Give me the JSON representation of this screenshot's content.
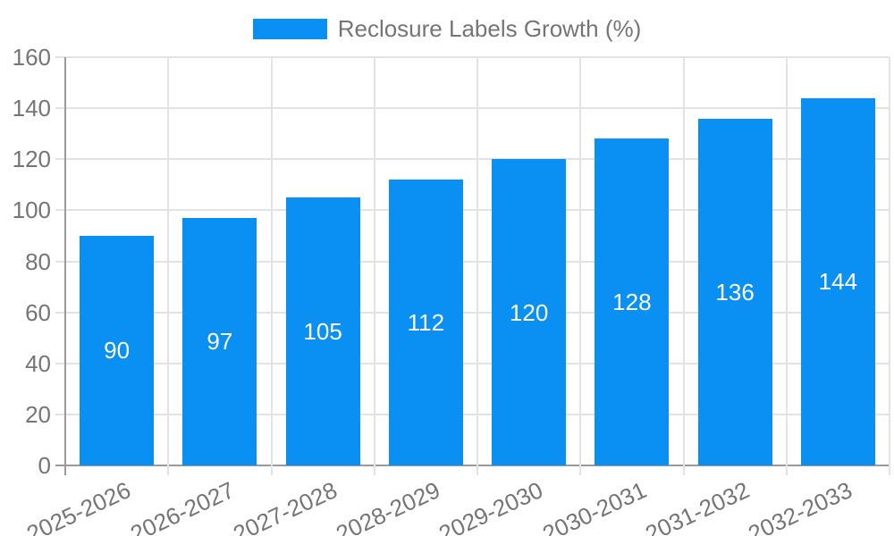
{
  "chart_data": {
    "type": "bar",
    "title": "",
    "legend": {
      "label": "Reclosure Labels Growth (%)",
      "position": "top-center"
    },
    "categories": [
      "2025-2026",
      "2026-2027",
      "2027-2028",
      "2028-2029",
      "2029-2030",
      "2030-2031",
      "2031-2032",
      "2032-2033"
    ],
    "values": [
      90,
      97,
      105,
      112,
      120,
      128,
      136,
      144
    ],
    "value_labels_shown_inside_bars": true,
    "ylim": [
      0,
      160
    ],
    "ytick_step": 20,
    "ytick_labels": [
      "0",
      "20",
      "40",
      "60",
      "80",
      "100",
      "120",
      "140",
      "160"
    ],
    "x_label_rotation_deg": -25,
    "grid": true,
    "colors": {
      "bar": "#0a8ff2",
      "bar_value_text": "#ffffff",
      "axis_line": "#9a9a9a",
      "gridline": "#e3e3e3",
      "tick_text": "#757575",
      "legend_text": "#757575",
      "background": "#ffffff"
    }
  }
}
